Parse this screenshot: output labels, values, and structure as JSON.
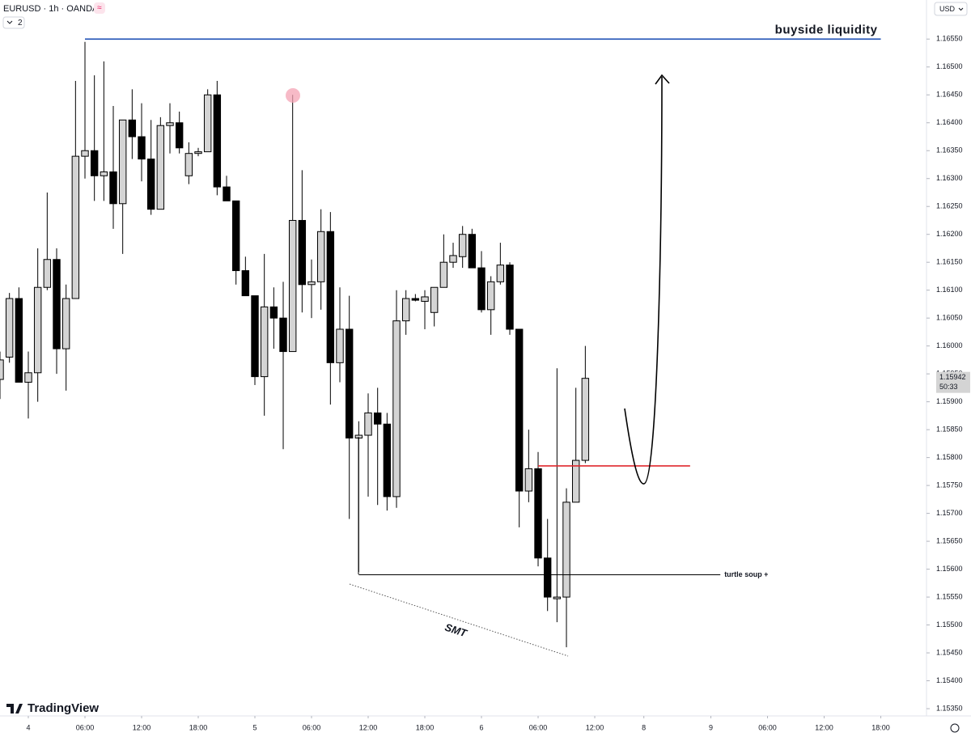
{
  "chart_data": {
    "type": "candlestick",
    "symbol": "EURUSD · 1h · OANDA",
    "collapsed_indicators": "2",
    "currency": "USD",
    "brand": "TradingView",
    "up_color": "#d4d4d4",
    "down_color": "#000000",
    "x": [
      -3,
      -2,
      -1,
      0,
      1,
      2,
      3,
      4,
      5,
      6,
      7,
      8,
      9,
      10,
      11,
      12,
      13,
      14,
      15,
      16,
      17,
      18,
      19,
      20,
      21,
      22,
      23,
      24,
      25,
      26,
      27,
      28,
      29,
      30,
      31,
      32,
      33,
      34,
      35,
      36,
      37,
      38,
      39,
      40,
      41,
      42,
      43,
      44,
      45,
      46,
      47,
      48,
      49,
      50,
      51,
      52,
      53,
      54,
      55,
      56,
      57,
      58,
      59
    ],
    "open": [
      1.1594,
      1.1598,
      1.16085,
      1.15935,
      1.15952,
      1.16105,
      1.16155,
      1.15995,
      1.16085,
      1.1634,
      1.1635,
      1.16305,
      1.16312,
      1.16255,
      1.16405,
      1.16375,
      1.16335,
      1.16245,
      1.16395,
      1.164,
      1.16305,
      1.16345,
      1.16348,
      1.1645,
      1.16285,
      1.1626,
      1.16135,
      1.1609,
      1.15945,
      1.1607,
      1.1605,
      1.1599,
      1.16225,
      1.1611,
      1.16115,
      1.16205,
      1.1597,
      1.1603,
      1.15835,
      1.1584,
      1.1588,
      1.1586,
      1.1573,
      1.16045,
      1.16085,
      1.1608,
      1.1606,
      1.16105,
      1.1615,
      1.1616,
      1.162,
      1.1614,
      1.16065,
      1.16115,
      1.16145,
      1.1603,
      1.1574,
      1.1578,
      1.1562,
      1.15547,
      1.1555,
      1.1572,
      1.15795
    ],
    "high": [
      1.1599,
      1.16095,
      1.16105,
      1.1599,
      1.16175,
      1.16275,
      1.16175,
      1.1611,
      1.16475,
      1.16545,
      1.16485,
      1.1651,
      1.1643,
      1.16405,
      1.1646,
      1.16435,
      1.16405,
      1.1641,
      1.16435,
      1.1642,
      1.16365,
      1.16355,
      1.1646,
      1.16475,
      1.16305,
      1.1626,
      1.1616,
      1.1609,
      1.16165,
      1.16105,
      1.16115,
      1.1645,
      1.16315,
      1.16155,
      1.16245,
      1.1624,
      1.16105,
      1.1609,
      1.15865,
      1.15915,
      1.15925,
      1.1588,
      1.161,
      1.161,
      1.16093,
      1.161,
      1.16105,
      1.162,
      1.16185,
      1.16215,
      1.1621,
      1.1617,
      1.16125,
      1.16185,
      1.1615,
      1.1603,
      1.1585,
      1.1581,
      1.1569,
      1.1596,
      1.15745,
      1.15925,
      1.16
    ],
    "low": [
      1.15905,
      1.1597,
      1.15935,
      1.1587,
      1.159,
      1.161,
      1.1595,
      1.1592,
      1.16085,
      1.163,
      1.1626,
      1.1626,
      1.1621,
      1.16165,
      1.16335,
      1.16295,
      1.16235,
      1.16245,
      1.16345,
      1.16345,
      1.1629,
      1.1634,
      1.16348,
      1.1627,
      1.1626,
      1.1611,
      1.1609,
      1.1593,
      1.15875,
      1.15995,
      1.15815,
      1.1599,
      1.1606,
      1.1605,
      1.16065,
      1.15895,
      1.15935,
      1.1569,
      1.15595,
      1.1573,
      1.15715,
      1.15705,
      1.1571,
      1.1602,
      1.1608,
      1.1603,
      1.16035,
      1.16105,
      1.1614,
      1.1614,
      1.1614,
      1.1606,
      1.1602,
      1.1611,
      1.1602,
      1.15675,
      1.1572,
      1.15605,
      1.15525,
      1.15505,
      1.1546,
      1.1572,
      1.1579
    ],
    "close": [
      1.15975,
      1.16085,
      1.15935,
      1.15952,
      1.16105,
      1.16155,
      1.15995,
      1.16085,
      1.1634,
      1.1635,
      1.16305,
      1.16312,
      1.16255,
      1.16405,
      1.16375,
      1.16335,
      1.16245,
      1.16395,
      1.164,
      1.16355,
      1.16345,
      1.16348,
      1.1645,
      1.16285,
      1.1626,
      1.16135,
      1.1609,
      1.15945,
      1.1607,
      1.1605,
      1.1599,
      1.16225,
      1.1611,
      1.16115,
      1.16205,
      1.1597,
      1.1603,
      1.15835,
      1.1584,
      1.1588,
      1.1586,
      1.1573,
      1.16045,
      1.16085,
      1.16082,
      1.16088,
      1.16105,
      1.1615,
      1.16162,
      1.162,
      1.1614,
      1.16065,
      1.16115,
      1.16145,
      1.1603,
      1.1574,
      1.1578,
      1.1562,
      1.1555,
      1.1555,
      1.1572,
      1.15795,
      1.15942
    ],
    "xlim": [
      -3,
      95.14
    ],
    "xticks": [
      {
        "value": 0,
        "label": "4"
      },
      {
        "value": 6,
        "label": "06:00"
      },
      {
        "value": 12,
        "label": "12:00"
      },
      {
        "value": 18,
        "label": "18:00"
      },
      {
        "value": 24,
        "label": "5"
      },
      {
        "value": 30,
        "label": "06:00"
      },
      {
        "value": 36,
        "label": "12:00"
      },
      {
        "value": 42,
        "label": "18:00"
      },
      {
        "value": 48,
        "label": "6"
      },
      {
        "value": 54,
        "label": "06:00"
      },
      {
        "value": 60,
        "label": "12:00"
      },
      {
        "value": 65.2,
        "label": "8"
      },
      {
        "value": 72.3,
        "label": "9"
      },
      {
        "value": 78.3,
        "label": "06:00"
      },
      {
        "value": 84.3,
        "label": "12:00"
      },
      {
        "value": 90.3,
        "label": "18:00"
      }
    ],
    "ylim": [
      1.15337,
      1.1662
    ],
    "yticks": [
      {
        "value": 1.1535,
        "label": "1.15350"
      },
      {
        "value": 1.154,
        "label": "1.15400"
      },
      {
        "value": 1.1545,
        "label": "1.15450"
      },
      {
        "value": 1.155,
        "label": "1.15500"
      },
      {
        "value": 1.1555,
        "label": "1.15550"
      },
      {
        "value": 1.156,
        "label": "1.15600"
      },
      {
        "value": 1.1565,
        "label": "1.15650"
      },
      {
        "value": 1.157,
        "label": "1.15700"
      },
      {
        "value": 1.1575,
        "label": "1.15750"
      },
      {
        "value": 1.158,
        "label": "1.15800"
      },
      {
        "value": 1.1585,
        "label": "1.15850"
      },
      {
        "value": 1.159,
        "label": "1.15900"
      },
      {
        "value": 1.1595,
        "label": "1.15950"
      },
      {
        "value": 1.16,
        "label": "1.16000"
      },
      {
        "value": 1.1605,
        "label": "1.16050"
      },
      {
        "value": 1.161,
        "label": "1.16100"
      },
      {
        "value": 1.1615,
        "label": "1.16150"
      },
      {
        "value": 1.162,
        "label": "1.16200"
      },
      {
        "value": 1.1625,
        "label": "1.16250"
      },
      {
        "value": 1.163,
        "label": "1.16300"
      },
      {
        "value": 1.1635,
        "label": "1.16350"
      },
      {
        "value": 1.164,
        "label": "1.16400"
      },
      {
        "value": 1.1645,
        "label": "1.16450"
      },
      {
        "value": 1.165,
        "label": "1.16500"
      },
      {
        "value": 1.1655,
        "label": "1.16550"
      }
    ],
    "current_price": {
      "value": 1.15942,
      "label": "1.15942",
      "countdown": "50:33"
    },
    "levels": [
      {
        "label": "buyside liquidity",
        "price": 1.1655,
        "from": 6,
        "to": 90.3,
        "color": "#1e4fb4"
      },
      {
        "price": 1.15785,
        "from": 54,
        "to": 70.1,
        "color": "#e0282e"
      },
      {
        "label": "turtle soup +",
        "price": 1.1559,
        "from": 35,
        "to": 73.3,
        "color": "#000000"
      }
    ],
    "smt_label": "SMT"
  }
}
